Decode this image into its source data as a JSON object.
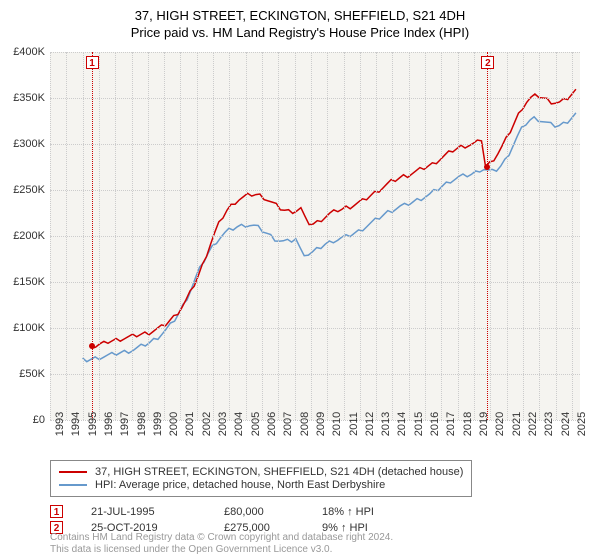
{
  "title1": "37, HIGH STREET, ECKINGTON, SHEFFIELD, S21 4DH",
  "title2": "Price paid vs. HM Land Registry's House Price Index (HPI)",
  "chart": {
    "type": "line",
    "background_color": "#f5f4f0",
    "grid_color": "#cccccc",
    "x_years": [
      1993,
      1994,
      1995,
      1996,
      1997,
      1998,
      1999,
      2000,
      2001,
      2002,
      2003,
      2004,
      2005,
      2006,
      2007,
      2008,
      2009,
      2010,
      2011,
      2012,
      2013,
      2014,
      2015,
      2016,
      2017,
      2018,
      2019,
      2020,
      2021,
      2022,
      2023,
      2024,
      2025
    ],
    "y_ticks": [
      0,
      50000,
      100000,
      150000,
      200000,
      250000,
      300000,
      350000,
      400000
    ],
    "y_tick_labels": [
      "£0",
      "£50K",
      "£100K",
      "£150K",
      "£200K",
      "£250K",
      "£300K",
      "£350K",
      "£400K"
    ],
    "ylim": [
      0,
      400000
    ],
    "xlim": [
      1993,
      2025.5
    ],
    "series": [
      {
        "name": "price_paid",
        "label": "37, HIGH STREET, ECKINGTON, SHEFFIELD, S21 4DH (detached house)",
        "color": "#cc0000",
        "line_width": 1.5,
        "start_year": 1995.55,
        "data": [
          80,
          80,
          82,
          83,
          85,
          86,
          87,
          88,
          89,
          90,
          91,
          92,
          93,
          94,
          95,
          97,
          99,
          101,
          104,
          108,
          112,
          117,
          123,
          130,
          138,
          147,
          157,
          168,
          180,
          192,
          203,
          213,
          221,
          228,
          233,
          237,
          240,
          242,
          244,
          245,
          245,
          244,
          242,
          239,
          236,
          233,
          230,
          228,
          227,
          227,
          228,
          230,
          219,
          214,
          213,
          215,
          218,
          221,
          224,
          226,
          228,
          229,
          231,
          232,
          234,
          236,
          238,
          241,
          244,
          247,
          250,
          253,
          256,
          259,
          261,
          263,
          265,
          266,
          268,
          270,
          272,
          274,
          276,
          278,
          281,
          284,
          287,
          290,
          293,
          295,
          297,
          298,
          299,
          300,
          302,
          305,
          275,
          279,
          284,
          290,
          297,
          305,
          314,
          323,
          332,
          340,
          346,
          350,
          352,
          352,
          350,
          348,
          346,
          345,
          345,
          347,
          350,
          354,
          358
        ]
      },
      {
        "name": "hpi",
        "label": "HPI: Average price, detached house, North East Derbyshire",
        "color": "#6699cc",
        "line_width": 1.5,
        "start_year": 1995.0,
        "data": [
          65,
          65,
          66,
          67,
          68,
          69,
          70,
          71,
          72,
          73,
          74,
          75,
          76,
          78,
          80,
          82,
          84,
          87,
          90,
          94,
          98,
          103,
          109,
          116,
          124,
          133,
          143,
          154,
          164,
          173,
          181,
          188,
          194,
          199,
          203,
          206,
          208,
          210,
          211,
          212,
          212,
          211,
          209,
          206,
          203,
          200,
          197,
          195,
          194,
          194,
          195,
          197,
          186,
          181,
          180,
          182,
          185,
          188,
          191,
          193,
          195,
          196,
          198,
          199,
          201,
          203,
          205,
          208,
          211,
          214,
          217,
          220,
          223,
          226,
          228,
          230,
          232,
          233,
          235,
          237,
          239,
          241,
          243,
          245,
          248,
          251,
          254,
          257,
          260,
          262,
          264,
          265,
          266,
          267,
          269,
          272,
          273,
          271,
          270,
          272,
          276,
          282,
          290,
          299,
          308,
          316,
          322,
          326,
          328,
          327,
          325,
          323,
          321,
          320,
          320,
          322,
          325,
          329,
          333
        ]
      }
    ],
    "markers": [
      {
        "n": "1",
        "year": 1995.55,
        "value": 80000,
        "color": "#cc0000"
      },
      {
        "n": "2",
        "year": 2019.82,
        "value": 275000,
        "color": "#cc0000"
      }
    ]
  },
  "legend": {
    "items": [
      {
        "color": "#cc0000",
        "label": "37, HIGH STREET, ECKINGTON, SHEFFIELD, S21 4DH (detached house)"
      },
      {
        "color": "#6699cc",
        "label": "HPI: Average price, detached house, North East Derbyshire"
      }
    ]
  },
  "marker_rows": [
    {
      "n": "1",
      "date": "21-JUL-1995",
      "price": "£80,000",
      "pct": "18% ↑ HPI"
    },
    {
      "n": "2",
      "date": "25-OCT-2019",
      "price": "£275,000",
      "pct": "9% ↑ HPI"
    }
  ],
  "footer1": "Contains HM Land Registry data © Crown copyright and database right 2024.",
  "footer2": "This data is licensed under the Open Government Licence v3.0."
}
